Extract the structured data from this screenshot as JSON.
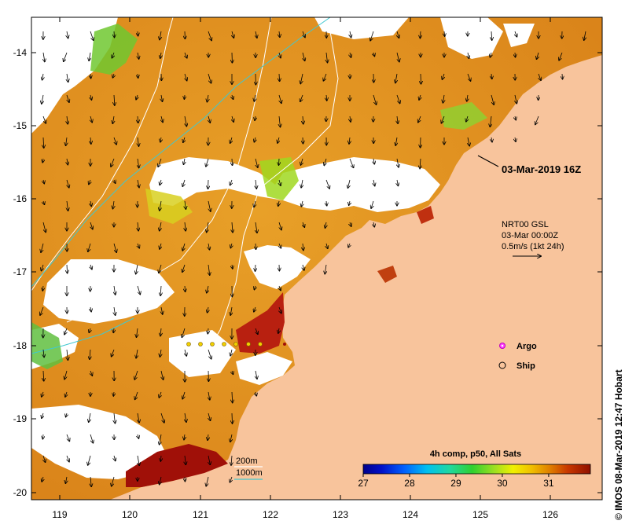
{
  "map": {
    "axes": {
      "lon_ticks": [
        "119",
        "120",
        "121",
        "122",
        "123",
        "124",
        "125",
        "126"
      ],
      "lat_ticks": [
        "-14",
        "-15",
        "-16",
        "-17",
        "-18",
        "-19",
        "-20"
      ]
    },
    "timestamp_label": "03-Mar-2019 16Z",
    "current_legend": {
      "line1": "NRT00 GSL",
      "line2": "03-Mar 00:00Z",
      "line3": "0.5m/s (1kt 24h)"
    },
    "markers": {
      "argo": "Argo",
      "ship": "Ship"
    },
    "isobaths": {
      "label_200": "200m",
      "label_1000": "1000m"
    },
    "colorbar": {
      "title": "4h comp, p50, All Sats",
      "ticks": [
        "27",
        "28",
        "29",
        "30",
        "31"
      ],
      "min": 27,
      "max": 31.9
    },
    "credit": "© IMOS 08-Mar-2019 12:47 Hobart",
    "colors": {
      "land": "#f8c49c",
      "cloud": "#ffffff",
      "warm": "#e0a020",
      "hot": "#a01008",
      "isobath_200": "#ffffff",
      "isobath_1000": "#40c8d0"
    }
  }
}
